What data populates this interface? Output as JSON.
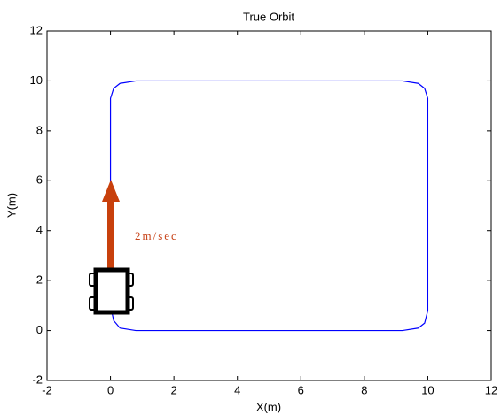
{
  "chart_data": {
    "type": "line",
    "title": "True Orbit",
    "x_label": "X(m)",
    "y_label": "Y(m)",
    "annotation": "2m/sec",
    "x": [
      0,
      0,
      0.1,
      0.3,
      0.8,
      9.2,
      9.7,
      9.9,
      10,
      10,
      9.9,
      9.7,
      9.2,
      0.8,
      0.3,
      0.1,
      0
    ],
    "series": [
      {
        "color": "#0000ff",
        "values": [
          1,
          9.3,
          9.7,
          9.9,
          10,
          10,
          9.9,
          9.7,
          9.3,
          0.8,
          0.3,
          0.1,
          0,
          0,
          0.1,
          0.4,
          1
        ]
      }
    ],
    "xlim": [
      -2,
      12
    ],
    "ylim": [
      -2,
      12
    ],
    "xticks": [
      -2,
      0,
      2,
      4,
      6,
      8,
      10,
      12
    ],
    "yticks": [
      -2,
      0,
      2,
      4,
      6,
      8,
      10,
      12
    ]
  }
}
